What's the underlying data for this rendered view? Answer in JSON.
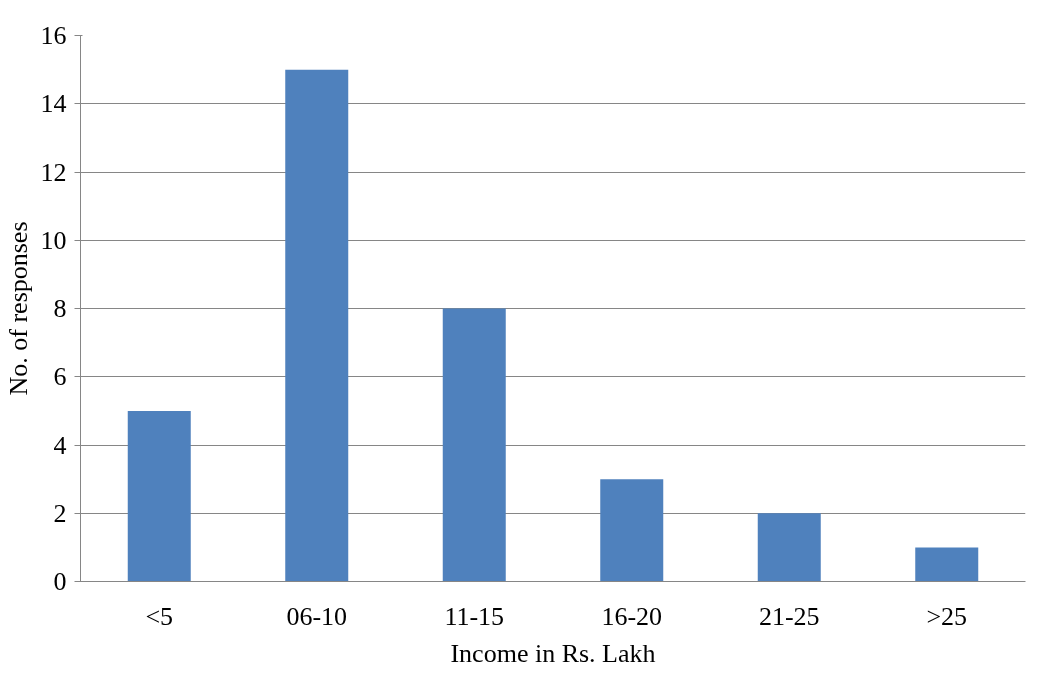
{
  "chart_data": {
    "type": "bar",
    "xlabel": "Income in Rs. Lakh",
    "ylabel": "No. of responses",
    "categories": [
      "<5",
      "06-10",
      "11-15",
      "16-20",
      "21-25",
      ">25"
    ],
    "values": [
      5,
      15,
      8,
      3,
      2,
      1
    ],
    "color": "#4f81bd",
    "ylim": [
      0,
      16
    ],
    "yticks": [
      0,
      2,
      4,
      6,
      8,
      10,
      12,
      14,
      16
    ],
    "grid": "y"
  }
}
